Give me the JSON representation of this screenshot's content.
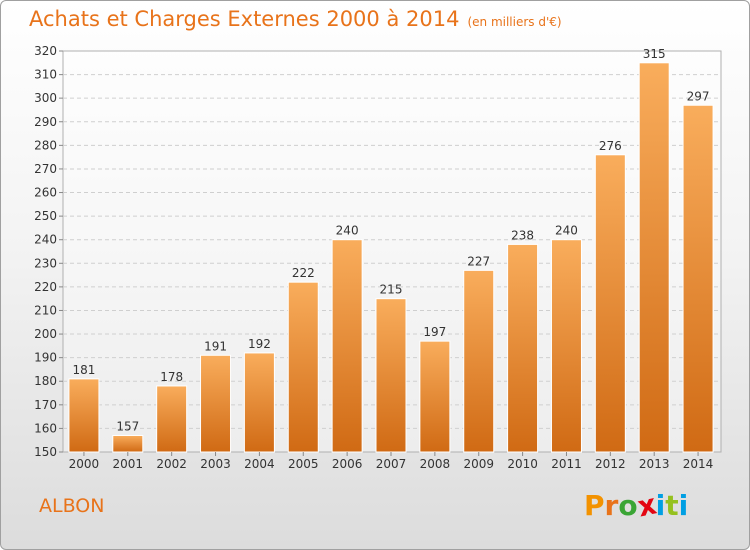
{
  "header": {
    "title": "Achats et Charges Externes 2000 à 2014",
    "subtitle": "(en milliers d'€)"
  },
  "footer": {
    "commune": "ALBON",
    "logo": [
      "P",
      "r",
      "o",
      "x",
      "i",
      "t",
      "i"
    ]
  },
  "colors": {
    "accent": "#e8731a",
    "bar_light": "#f9ad5c",
    "bar_dark": "#d06a14",
    "logo": [
      "#f39200",
      "#e8731a",
      "#3aa535",
      "#e30613",
      "#009fe3",
      "#95c11f",
      "#009fe3"
    ]
  },
  "chart_data": {
    "type": "bar",
    "categories": [
      "2000",
      "2001",
      "2002",
      "2003",
      "2004",
      "2005",
      "2006",
      "2007",
      "2008",
      "2009",
      "2010",
      "2011",
      "2012",
      "2013",
      "2014"
    ],
    "values": [
      181,
      157,
      178,
      191,
      192,
      222,
      240,
      215,
      197,
      227,
      238,
      240,
      276,
      315,
      297
    ],
    "ylim": [
      150,
      320
    ],
    "yticks": [
      150,
      160,
      170,
      180,
      190,
      200,
      210,
      220,
      230,
      240,
      250,
      260,
      270,
      280,
      290,
      300,
      310,
      320
    ],
    "grid": true,
    "title": "Achats et Charges Externes 2000 à 2014",
    "xlabel": "",
    "ylabel": ""
  }
}
